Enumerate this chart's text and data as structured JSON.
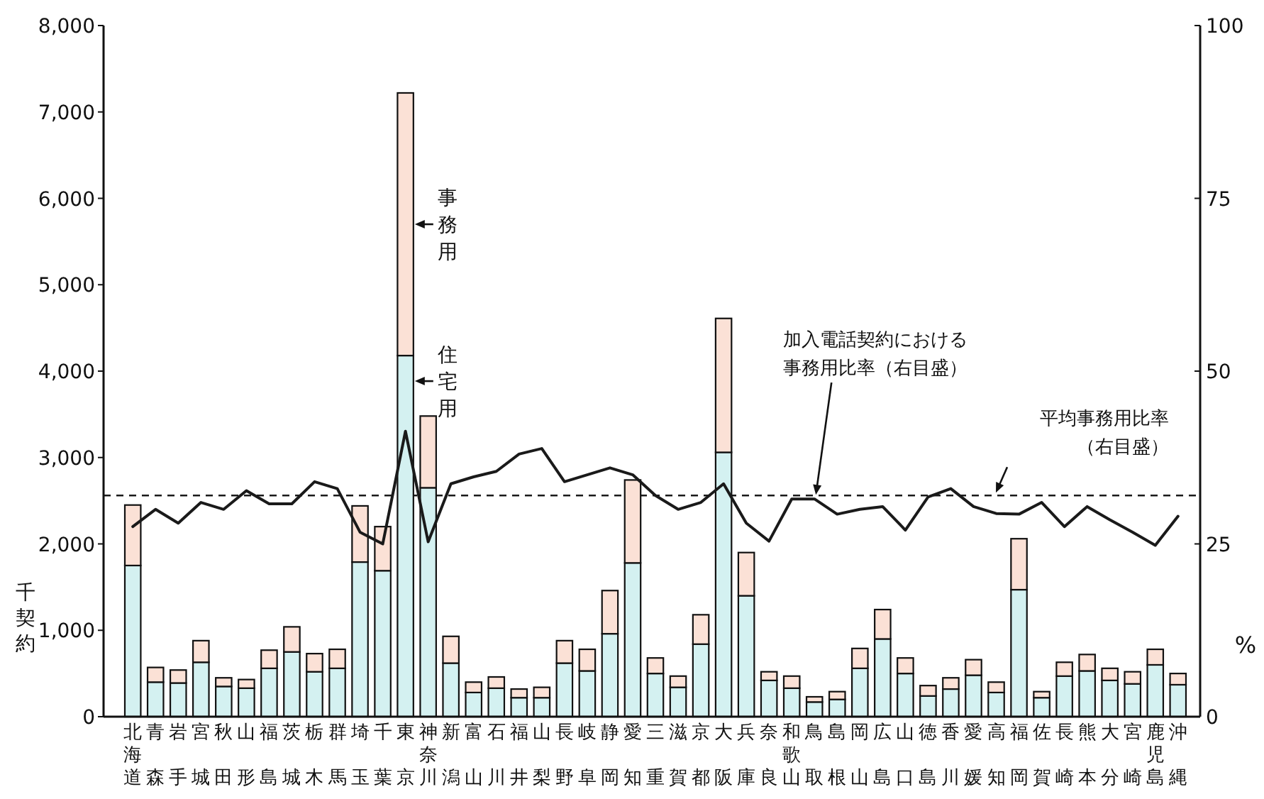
{
  "chart_data": {
    "type": "bar",
    "stacked": true,
    "legend": "top left",
    "ylabel": "千契約",
    "y2label": "%",
    "categories": [
      "北海道",
      "青森",
      "岩手",
      "宮城",
      "秋田",
      "山形",
      "福島",
      "茨城",
      "栃木",
      "群馬",
      "埼玉",
      "千葉",
      "東京",
      "神奈川",
      "新潟",
      "富山",
      "石川",
      "福井",
      "山梨",
      "長野",
      "岐阜",
      "静岡",
      "愛知",
      "三重",
      "滋賀",
      "京都",
      "大阪",
      "兵庫",
      "奈良",
      "和歌山",
      "鳥取",
      "島根",
      "岡山",
      "広島",
      "山口",
      "徳島",
      "香川",
      "愛媛",
      "高知",
      "福岡",
      "佐賀",
      "長崎",
      "熊本",
      "大分",
      "宮崎",
      "鹿児島",
      "沖縄"
    ],
    "series": [
      {
        "name": "住宅用",
        "color": "#d4f1f1",
        "values": [
          1750,
          400,
          390,
          630,
          350,
          330,
          560,
          750,
          520,
          560,
          1790,
          1690,
          4180,
          2650,
          620,
          280,
          330,
          220,
          220,
          620,
          530,
          960,
          1780,
          500,
          340,
          840,
          3060,
          1400,
          420,
          330,
          170,
          200,
          560,
          900,
          500,
          240,
          320,
          480,
          280,
          1470,
          220,
          470,
          530,
          420,
          380,
          600,
          370
        ]
      },
      {
        "name": "事務用",
        "color": "#fbe1d6",
        "values": [
          700,
          170,
          150,
          250,
          100,
          100,
          210,
          290,
          210,
          220,
          650,
          510,
          3040,
          830,
          310,
          120,
          130,
          100,
          120,
          260,
          250,
          500,
          960,
          180,
          130,
          340,
          1550,
          500,
          100,
          140,
          60,
          90,
          230,
          340,
          180,
          120,
          130,
          180,
          120,
          590,
          70,
          160,
          190,
          140,
          140,
          180,
          130
        ]
      },
      {
        "name": "加入電話契約における事務用比率（右目盛）",
        "type": "line",
        "axis": "y2",
        "color": "#1a1a1a",
        "values": [
          27.5,
          30,
          28,
          31,
          30,
          32.7,
          30.8,
          30.8,
          34,
          33,
          26.7,
          25,
          41.3,
          25.3,
          33.7,
          34.7,
          35.5,
          38,
          38.8,
          34,
          35,
          36,
          35,
          32,
          30,
          31,
          33.7,
          28,
          25.4,
          31.5,
          31.5,
          29.3,
          30,
          30.4,
          27,
          31.8,
          33,
          30.4,
          29.4,
          29.3,
          31,
          27.5,
          30.4,
          28.5,
          26.7,
          24.8,
          29
        ]
      }
    ],
    "ylim": [
      0,
      8000
    ],
    "yticks": [
      0,
      {
        "value": 1000,
        "label": "1,000"
      },
      {
        "value": 2000,
        "label": "2,000"
      },
      {
        "value": 3000,
        "label": "3,000"
      },
      {
        "value": 4000,
        "label": "4,000"
      },
      {
        "value": 5000,
        "label": "5,000"
      },
      {
        "value": 6000,
        "label": "6,000"
      },
      {
        "value": 7000,
        "label": "7,000"
      },
      {
        "value": 8000,
        "label": "8,000"
      }
    ],
    "y2lim": [
      0,
      100
    ],
    "y2ticks": [
      0,
      25,
      50,
      75,
      100
    ],
    "ref_lines": [
      {
        "axis": "y2",
        "value": 32,
        "label": "平均事務用比率（右目盛）",
        "line_style": "dashed",
        "color": "#1a1a1a"
      }
    ]
  }
}
